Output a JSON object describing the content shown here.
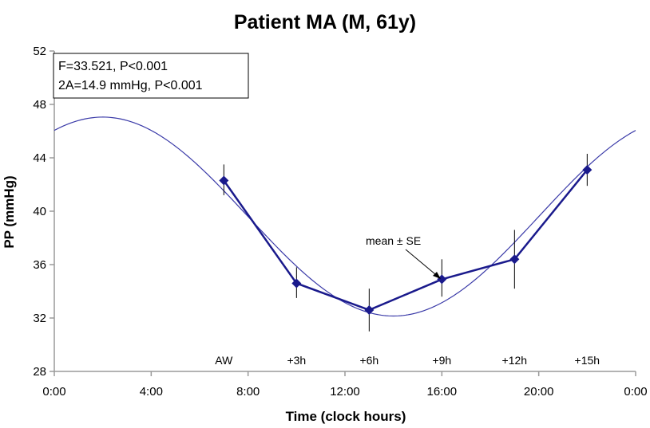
{
  "chart_data": {
    "type": "line",
    "title": "Patient MA (M, 61y)",
    "xlabel": "Time (clock hours)",
    "ylabel": "PP (mmHg)",
    "xlim": [
      0,
      24
    ],
    "ylim": [
      28,
      52
    ],
    "x_ticks": [
      0,
      4,
      8,
      12,
      16,
      20,
      24
    ],
    "x_tick_labels": [
      "0:00",
      "4:00",
      "8:00",
      "12:00",
      "16:00",
      "20:00",
      "0:00"
    ],
    "y_ticks": [
      28,
      32,
      36,
      40,
      44,
      48,
      52
    ],
    "y_tick_labels": [
      "28",
      "32",
      "36",
      "40",
      "44",
      "48",
      "52"
    ],
    "grid": false,
    "stats_box": [
      "F=33.521, P<0.001",
      "2A=14.9 mmHg, P<0.001"
    ],
    "phase_labels": [
      "AW",
      "+3h",
      "+6h",
      "+9h",
      "+12h",
      "+15h"
    ],
    "annotation": "mean ± SE",
    "series": [
      {
        "kind": "observed",
        "marker": "diamond",
        "x": [
          7,
          10,
          13,
          16,
          19,
          22
        ],
        "y": [
          42.3,
          34.6,
          32.6,
          34.9,
          36.4,
          43.1
        ],
        "err_low": [
          41.2,
          33.5,
          31.0,
          33.6,
          34.2,
          41.9
        ],
        "err_high": [
          43.5,
          35.8,
          34.2,
          36.4,
          38.6,
          44.3
        ]
      },
      {
        "kind": "fitted_cosinor",
        "mesor": 39.6,
        "amplitude": 7.45,
        "acrophase_hours": 2.0,
        "period_hours": 24
      }
    ],
    "colors": {
      "series": "#1a1a8c",
      "fit": "#3a3aa8",
      "error_bar": "#000000",
      "axis": "#9a9a9a"
    }
  }
}
